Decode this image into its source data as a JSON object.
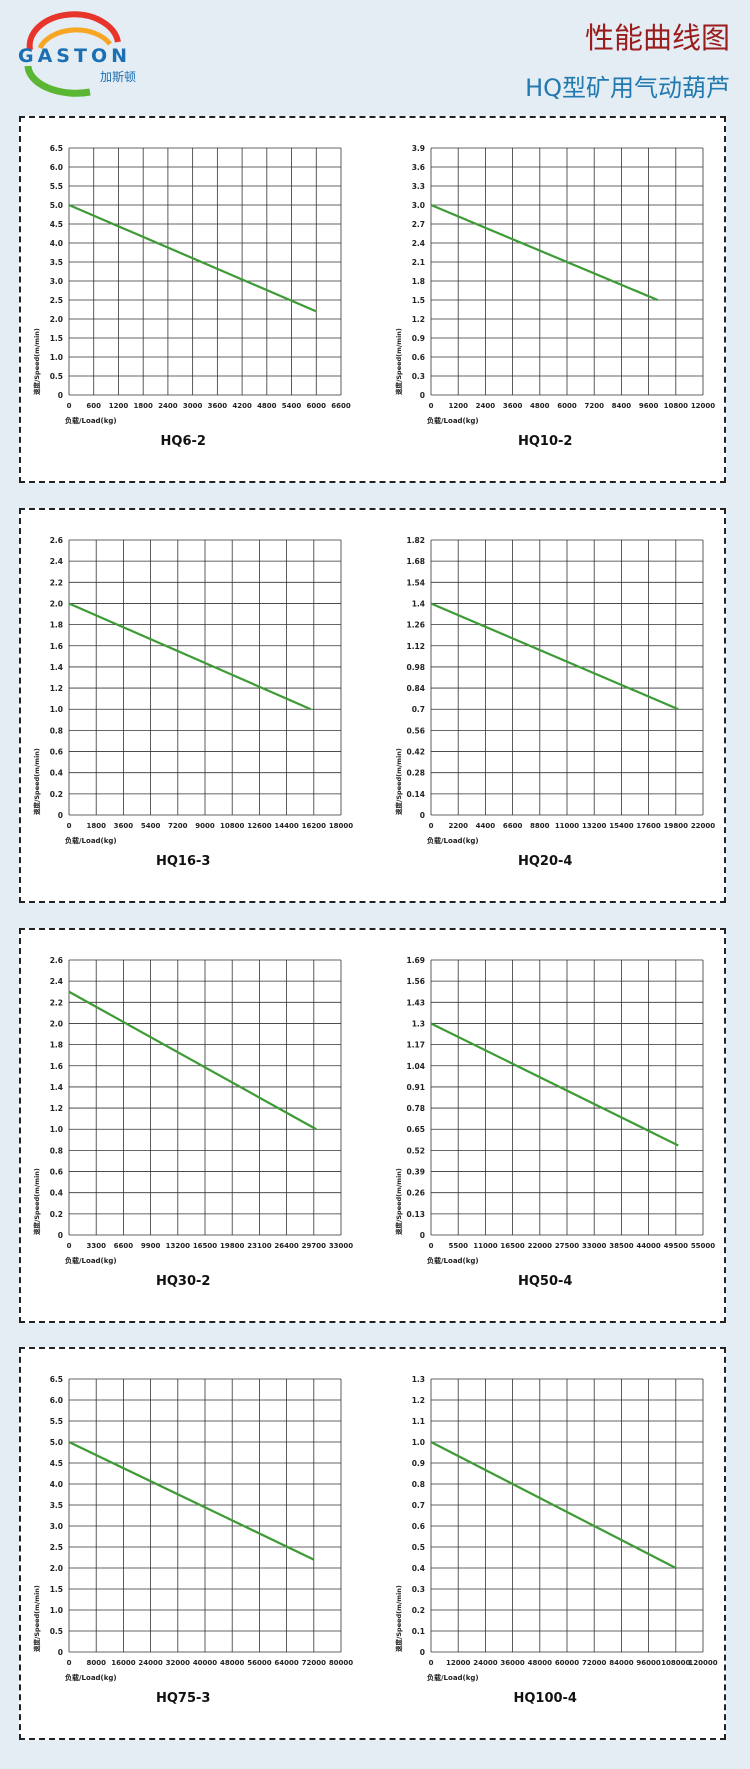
{
  "header": {
    "logo_text": "GASTON",
    "logo_cn": "加斯顿",
    "title": "性能曲线图",
    "subtitle": "HQ型矿用气动葫芦"
  },
  "chart_data": [
    {
      "type": "line",
      "title": "HQ6-2",
      "xlabel": "负载/Load(kg)",
      "ylabel": "速度/Speed(m/min)",
      "x": [
        0,
        6000
      ],
      "values": [
        5,
        2.2
      ],
      "color": "#3d9b35",
      "grid": true,
      "xlim": [
        0,
        6600
      ],
      "ylim": [
        0,
        6.5
      ],
      "xticks": [
        0,
        600,
        1200,
        1800,
        2400,
        3000,
        3600,
        4200,
        4800,
        5400,
        6000,
        6600
      ],
      "yticks": [
        0,
        0.5,
        {
          "value": 1,
          "label": "1.0"
        },
        1.5,
        {
          "value": 2,
          "label": "2.0"
        },
        2.5,
        {
          "value": 3,
          "label": "3.0"
        },
        3.5,
        {
          "value": 4,
          "label": "4.0"
        },
        4.5,
        {
          "value": 5,
          "label": "5.0"
        },
        5.5,
        {
          "value": 6,
          "label": "6.0"
        },
        6.5
      ]
    },
    {
      "type": "line",
      "title": "HQ10-2",
      "xlabel": "负载/Load(kg)",
      "ylabel": "速度/Speed(m/min)",
      "x": [
        0,
        10000
      ],
      "values": [
        3,
        1.5
      ],
      "color": "#3d9b35",
      "grid": true,
      "xlim": [
        0,
        12000
      ],
      "ylim": [
        0,
        3.9
      ],
      "xticks": [
        0,
        1200,
        2400,
        3600,
        4800,
        6000,
        7200,
        8400,
        9600,
        10800,
        12000
      ],
      "yticks": [
        0,
        0.3,
        0.6,
        0.9,
        1.2,
        1.5,
        1.8,
        2.1,
        2.4,
        2.7,
        {
          "value": 3,
          "label": "3.0"
        },
        3.3,
        3.6,
        3.9
      ]
    },
    {
      "type": "line",
      "title": "HQ16-3",
      "xlabel": "负载/Load(kg)",
      "ylabel": "速度/Speed(m/min)",
      "x": [
        0,
        16000
      ],
      "values": [
        2,
        1
      ],
      "color": "#3d9b35",
      "grid": true,
      "xlim": [
        0,
        18000
      ],
      "ylim": [
        0,
        2.6
      ],
      "xticks": [
        0,
        1800,
        3600,
        5400,
        7200,
        9000,
        10800,
        12600,
        14400,
        16200,
        18000
      ],
      "yticks": [
        0,
        0.2,
        0.4,
        0.6,
        0.8,
        {
          "value": 1,
          "label": "1.0"
        },
        1.2,
        1.4,
        1.6,
        1.8,
        {
          "value": 2,
          "label": "2.0"
        },
        2.2,
        2.4,
        2.6
      ]
    },
    {
      "type": "line",
      "title": "HQ20-4",
      "xlabel": "负载/Load(kg)",
      "ylabel": "速度/Speed(m/min)",
      "x": [
        0,
        20000
      ],
      "values": [
        1.4,
        0.7
      ],
      "color": "#3d9b35",
      "grid": true,
      "xlim": [
        0,
        22000
      ],
      "ylim": [
        0,
        1.82
      ],
      "xticks": [
        0,
        2200,
        4400,
        6600,
        8800,
        11000,
        13200,
        15400,
        17600,
        19800,
        22000
      ],
      "yticks": [
        0,
        0.14,
        0.28,
        0.42,
        0.56,
        0.7,
        0.84,
        0.98,
        1.12,
        1.26,
        1.4,
        1.54,
        1.68,
        1.82
      ]
    },
    {
      "type": "line",
      "title": "HQ30-2",
      "xlabel": "负载/Load(kg)",
      "ylabel": "速度/Speed(m/min)",
      "x": [
        0,
        30000
      ],
      "values": [
        2.3,
        1
      ],
      "color": "#3d9b35",
      "grid": true,
      "xlim": [
        0,
        33000
      ],
      "ylim": [
        0,
        2.6
      ],
      "xticks": [
        0,
        3300,
        6600,
        9900,
        13200,
        16500,
        19800,
        23100,
        26400,
        29700,
        33000
      ],
      "yticks": [
        0,
        0.2,
        0.4,
        0.6,
        0.8,
        {
          "value": 1,
          "label": "1.0"
        },
        1.2,
        1.4,
        1.6,
        1.8,
        {
          "value": 2,
          "label": "2.0"
        },
        2.2,
        2.4,
        2.6
      ]
    },
    {
      "type": "line",
      "title": "HQ50-4",
      "xlabel": "负载/Load(kg)",
      "ylabel": "速度/Speed(m/min)",
      "x": [
        0,
        50000
      ],
      "values": [
        1.3,
        0.55
      ],
      "color": "#3d9b35",
      "grid": true,
      "xlim": [
        0,
        55000
      ],
      "ylim": [
        0,
        1.69
      ],
      "xticks": [
        0,
        5500,
        11000,
        16500,
        22000,
        27500,
        33000,
        38500,
        44000,
        49500,
        55000
      ],
      "yticks": [
        0,
        0.13,
        0.26,
        0.39,
        0.52,
        0.65,
        0.78,
        0.91,
        1.04,
        1.17,
        1.3,
        1.43,
        1.56,
        1.69
      ]
    },
    {
      "type": "line",
      "title": "HQ75-3",
      "xlabel": "负载/Load(kg)",
      "ylabel": "速度/Speed(m/min)",
      "x": [
        0,
        72000
      ],
      "values": [
        5,
        2.2
      ],
      "color": "#3d9b35",
      "grid": true,
      "xlim": [
        0,
        80000
      ],
      "ylim": [
        0,
        6.5
      ],
      "xticks": [
        0,
        8000,
        16000,
        24000,
        32000,
        40000,
        48000,
        56000,
        64000,
        72000,
        80000
      ],
      "yticks": [
        0,
        0.5,
        {
          "value": 1,
          "label": "1.0"
        },
        1.5,
        {
          "value": 2,
          "label": "2.0"
        },
        2.5,
        {
          "value": 3,
          "label": "3.0"
        },
        3.5,
        {
          "value": 4,
          "label": "4.0"
        },
        4.5,
        {
          "value": 5,
          "label": "5.0"
        },
        5.5,
        {
          "value": 6,
          "label": "6.0"
        },
        6.5
      ]
    },
    {
      "type": "line",
      "title": "HQ100-4",
      "xlabel": "负载/Load(kg)",
      "ylabel": "速度/Speed(m/min)",
      "x": [
        0,
        108000
      ],
      "values": [
        1,
        0.4
      ],
      "color": "#3d9b35",
      "grid": true,
      "xlim": [
        0,
        120000
      ],
      "ylim": [
        0,
        1.3
      ],
      "xticks": [
        0,
        12000,
        24000,
        36000,
        48000,
        60000,
        72000,
        84000,
        96000,
        108000,
        120000
      ],
      "yticks": [
        0,
        0.1,
        0.2,
        0.3,
        0.4,
        0.5,
        0.6,
        0.7,
        0.8,
        0.9,
        {
          "value": 1,
          "label": "1.0"
        },
        1.1,
        1.2,
        1.3
      ]
    }
  ]
}
